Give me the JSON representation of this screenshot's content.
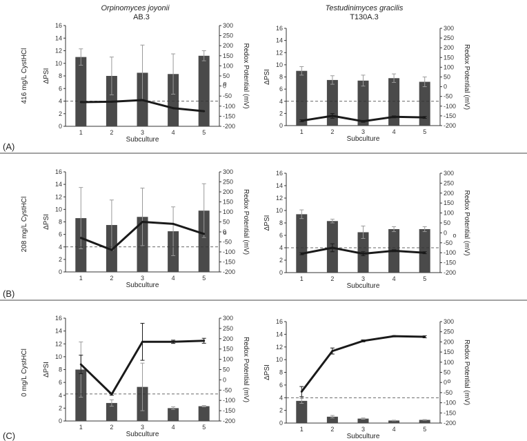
{
  "figure": {
    "columns": [
      {
        "species": "Orpinomyces joyonii",
        "strain": "AB.3"
      },
      {
        "species": "Testudinimyces gracilis",
        "strain": "T130A.3"
      }
    ],
    "rows": [
      {
        "panel": "(A)",
        "condition": "416 mg/L CystHCl"
      },
      {
        "panel": "(B)",
        "condition": "208 mg/L CystHCl"
      },
      {
        "panel": "(C)",
        "condition": "0 mg/L CystHCl"
      }
    ],
    "colors": {
      "bar": "#4a4a4a",
      "line": "#1a1a1a",
      "error": "#9a9a9a",
      "axis": "#333333",
      "separator": "#444444"
    },
    "stray_mark": "o"
  },
  "chart_data": [
    {
      "id": "A-left",
      "type": "bar",
      "xlabel": "Subculture",
      "ylabel": "ΔPSI",
      "y2label": "Redox Potential (mV)",
      "categories": [
        "1",
        "2",
        "3",
        "4",
        "5"
      ],
      "ylim": [
        0,
        16
      ],
      "y2lim": [
        -200,
        300
      ],
      "yticks": [
        "0",
        "2",
        "4",
        "6",
        "8",
        "10",
        "12",
        "14",
        "16"
      ],
      "y2ticks": [
        "-200",
        "-150",
        "-100",
        "-50",
        "0",
        "50",
        "100",
        "150",
        "200",
        "250",
        "300"
      ],
      "threshold": 4,
      "series": [
        {
          "name": "ΔPSI",
          "kind": "bar",
          "axis": "left",
          "values": [
            11.0,
            8.0,
            8.5,
            8.3,
            11.2
          ],
          "errors": [
            1.3,
            3.0,
            4.4,
            3.2,
            0.8
          ]
        },
        {
          "name": "Redox Potential",
          "kind": "line",
          "axis": "right",
          "values": [
            -80,
            -78,
            -70,
            -110,
            -125
          ],
          "errors": [
            0,
            0,
            0,
            0,
            0
          ]
        }
      ]
    },
    {
      "id": "A-right",
      "type": "bar",
      "xlabel": "Subculture",
      "ylabel": "ΔPSI",
      "y2label": "Redox Potential (mV)",
      "categories": [
        "1",
        "2",
        "3",
        "4",
        "5"
      ],
      "ylim": [
        0,
        16
      ],
      "y2lim": [
        -200,
        300
      ],
      "yticks": [
        "0",
        "2",
        "4",
        "6",
        "8",
        "10",
        "12",
        "14",
        "16"
      ],
      "y2ticks": [
        "-200",
        "-150",
        "-100",
        "-50",
        "0",
        "50",
        "100",
        "150",
        "200",
        "250",
        "300"
      ],
      "threshold": 4,
      "series": [
        {
          "name": "ΔPSI",
          "kind": "bar",
          "axis": "left",
          "values": [
            9.0,
            7.5,
            7.4,
            7.8,
            7.2
          ],
          "errors": [
            0.7,
            0.7,
            0.9,
            0.7,
            0.8
          ]
        },
        {
          "name": "Redox Potential",
          "kind": "line",
          "axis": "right",
          "values": [
            -175,
            -150,
            -178,
            -155,
            -158
          ],
          "errors": [
            5,
            12,
            5,
            5,
            5
          ]
        }
      ]
    },
    {
      "id": "B-left",
      "type": "bar",
      "xlabel": "Subculture",
      "ylabel": "ΔPSI",
      "y2label": "Redox Potential (mV)",
      "categories": [
        "1",
        "2",
        "3",
        "4",
        "5"
      ],
      "ylim": [
        0,
        16
      ],
      "y2lim": [
        -200,
        300
      ],
      "yticks": [
        "0",
        "2",
        "4",
        "6",
        "8",
        "10",
        "12",
        "14",
        "16"
      ],
      "y2ticks": [
        "-200",
        "-150",
        "-100",
        "-50",
        "0",
        "50",
        "100",
        "150",
        "200",
        "250",
        "300"
      ],
      "threshold": 4,
      "series": [
        {
          "name": "ΔPSI",
          "kind": "bar",
          "axis": "left",
          "values": [
            8.6,
            7.5,
            8.8,
            6.5,
            9.8
          ],
          "errors": [
            4.9,
            4.0,
            4.6,
            3.9,
            4.3
          ]
        },
        {
          "name": "Redox Potential",
          "kind": "line",
          "axis": "right",
          "values": [
            -30,
            -90,
            50,
            40,
            -10
          ],
          "errors": [
            0,
            0,
            0,
            0,
            0
          ]
        }
      ]
    },
    {
      "id": "B-right",
      "type": "bar",
      "xlabel": "Subculture",
      "ylabel": "ΔPSI",
      "y2label": "Redox Potential (mV)",
      "categories": [
        "1",
        "2",
        "3",
        "4",
        "5"
      ],
      "ylim": [
        0,
        16
      ],
      "y2lim": [
        -200,
        300
      ],
      "yticks": [
        "0",
        "2",
        "4",
        "6",
        "8",
        "10",
        "12",
        "14",
        "16"
      ],
      "y2ticks": [
        "-200",
        "-150",
        "-100",
        "-50",
        "0",
        "50",
        "100",
        "150",
        "200",
        "250",
        "300"
      ],
      "threshold": 4,
      "series": [
        {
          "name": "ΔPSI",
          "kind": "bar",
          "axis": "left",
          "values": [
            9.4,
            8.3,
            6.5,
            7.0,
            7.0
          ],
          "errors": [
            0.7,
            0.3,
            1.0,
            0.4,
            0.4
          ]
        },
        {
          "name": "Redox Potential",
          "kind": "line",
          "axis": "right",
          "values": [
            -105,
            -75,
            -105,
            -90,
            -100
          ],
          "errors": [
            5,
            20,
            10,
            5,
            5
          ]
        }
      ]
    },
    {
      "id": "C-left",
      "type": "bar",
      "xlabel": "Subculture",
      "ylabel": "ΔPSI",
      "y2label": "Redox Potential (mV)",
      "categories": [
        "1",
        "2",
        "3",
        "4",
        "5"
      ],
      "ylim": [
        0,
        16
      ],
      "y2lim": [
        -200,
        300
      ],
      "yticks": [
        "0",
        "2",
        "4",
        "6",
        "8",
        "10",
        "12",
        "14",
        "16"
      ],
      "y2ticks": [
        "-200",
        "-150",
        "-100",
        "-50",
        "0",
        "50",
        "100",
        "150",
        "200",
        "250",
        "300"
      ],
      "threshold": 4.2,
      "series": [
        {
          "name": "ΔPSI",
          "kind": "bar",
          "axis": "left",
          "values": [
            8.0,
            2.8,
            5.3,
            2.0,
            2.3
          ],
          "errors": [
            4.3,
            0.5,
            3.7,
            0.2,
            0.1
          ]
        },
        {
          "name": "Redox Potential",
          "kind": "line",
          "axis": "right",
          "values": [
            75,
            -70,
            185,
            185,
            190
          ],
          "errors": [
            45,
            5,
            90,
            8,
            12
          ]
        }
      ]
    },
    {
      "id": "C-right",
      "type": "bar",
      "xlabel": "Subculture",
      "ylabel": "ΔPSI",
      "y2label": "Redox Potential (mV)",
      "categories": [
        "1",
        "2",
        "3",
        "4",
        "5"
      ],
      "ylim": [
        0,
        16
      ],
      "y2lim": [
        -200,
        300
      ],
      "yticks": [
        "0",
        "2",
        "4",
        "6",
        "8",
        "10",
        "12",
        "14",
        "16"
      ],
      "y2ticks": [
        "-200",
        "-150",
        "-100",
        "-50",
        "0",
        "50",
        "100",
        "150",
        "200",
        "250",
        "300"
      ],
      "threshold": 4,
      "series": [
        {
          "name": "ΔPSI",
          "kind": "bar",
          "axis": "left",
          "values": [
            3.5,
            1.0,
            0.7,
            0.4,
            0.5
          ],
          "errors": [
            0.4,
            0.2,
            0.1,
            0.05,
            0.05
          ]
        },
        {
          "name": "Redox Potential",
          "kind": "line",
          "axis": "right",
          "values": [
            -45,
            155,
            205,
            228,
            225
          ],
          "errors": [
            25,
            15,
            5,
            3,
            5
          ]
        }
      ]
    }
  ]
}
